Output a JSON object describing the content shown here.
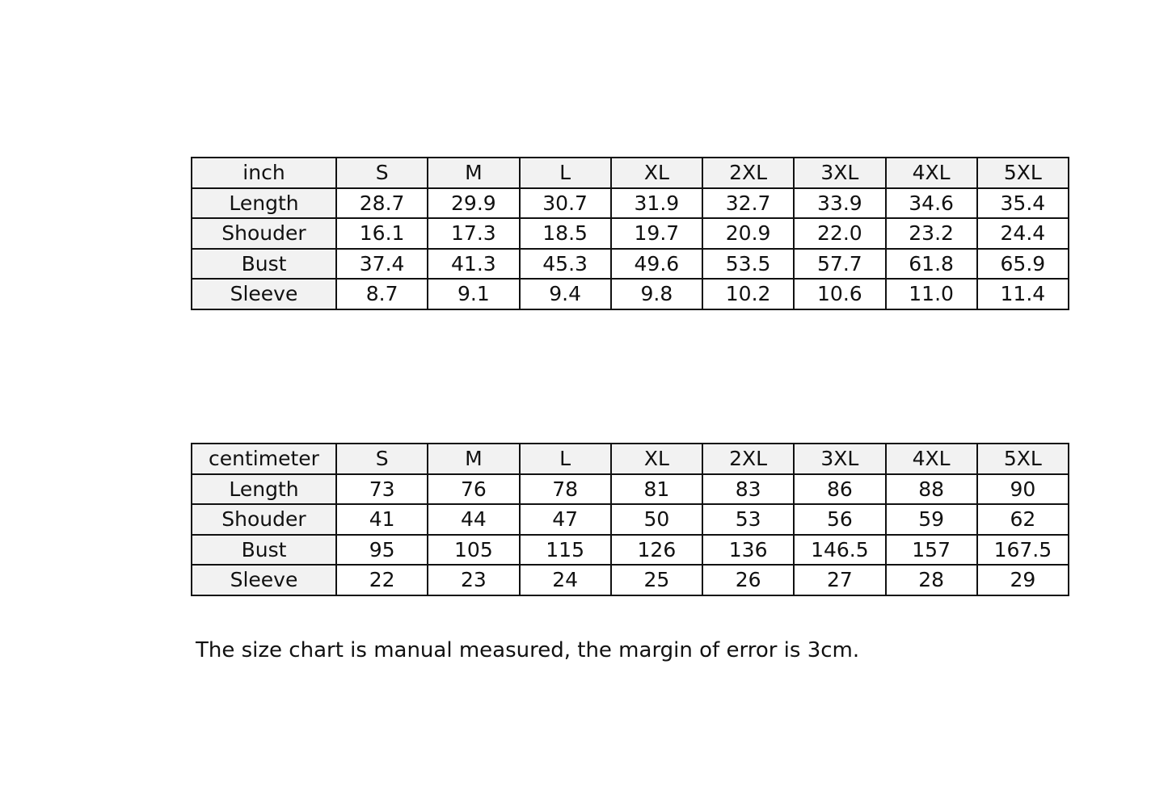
{
  "tables": [
    {
      "unit": "inch",
      "sizes": [
        "S",
        "M",
        "L",
        "XL",
        "2XL",
        "3XL",
        "4XL",
        "5XL"
      ],
      "rows": [
        {
          "label": "Length",
          "values": [
            "28.7",
            "29.9",
            "30.7",
            "31.9",
            "32.7",
            "33.9",
            "34.6",
            "35.4"
          ]
        },
        {
          "label": "Shouder",
          "values": [
            "16.1",
            "17.3",
            "18.5",
            "19.7",
            "20.9",
            "22.0",
            "23.2",
            "24.4"
          ]
        },
        {
          "label": "Bust",
          "values": [
            "37.4",
            "41.3",
            "45.3",
            "49.6",
            "53.5",
            "57.7",
            "61.8",
            "65.9"
          ]
        },
        {
          "label": "Sleeve",
          "values": [
            "8.7",
            "9.1",
            "9.4",
            "9.8",
            "10.2",
            "10.6",
            "11.0",
            "11.4"
          ]
        }
      ]
    },
    {
      "unit": "centimeter",
      "sizes": [
        "S",
        "M",
        "L",
        "XL",
        "2XL",
        "3XL",
        "4XL",
        "5XL"
      ],
      "rows": [
        {
          "label": "Length",
          "values": [
            "73",
            "76",
            "78",
            "81",
            "83",
            "86",
            "88",
            "90"
          ]
        },
        {
          "label": "Shouder",
          "values": [
            "41",
            "44",
            "47",
            "50",
            "53",
            "56",
            "59",
            "62"
          ]
        },
        {
          "label": "Bust",
          "values": [
            "95",
            "105",
            "115",
            "126",
            "136",
            "146.5",
            "157",
            "167.5"
          ]
        },
        {
          "label": "Sleeve",
          "values": [
            "22",
            "23",
            "24",
            "25",
            "26",
            "27",
            "28",
            "29"
          ]
        }
      ]
    }
  ],
  "note": "The size chart is manual measured, the margin of error is 3cm.",
  "colors": {
    "header_bg": "#f2f2f2",
    "border": "#111111"
  }
}
